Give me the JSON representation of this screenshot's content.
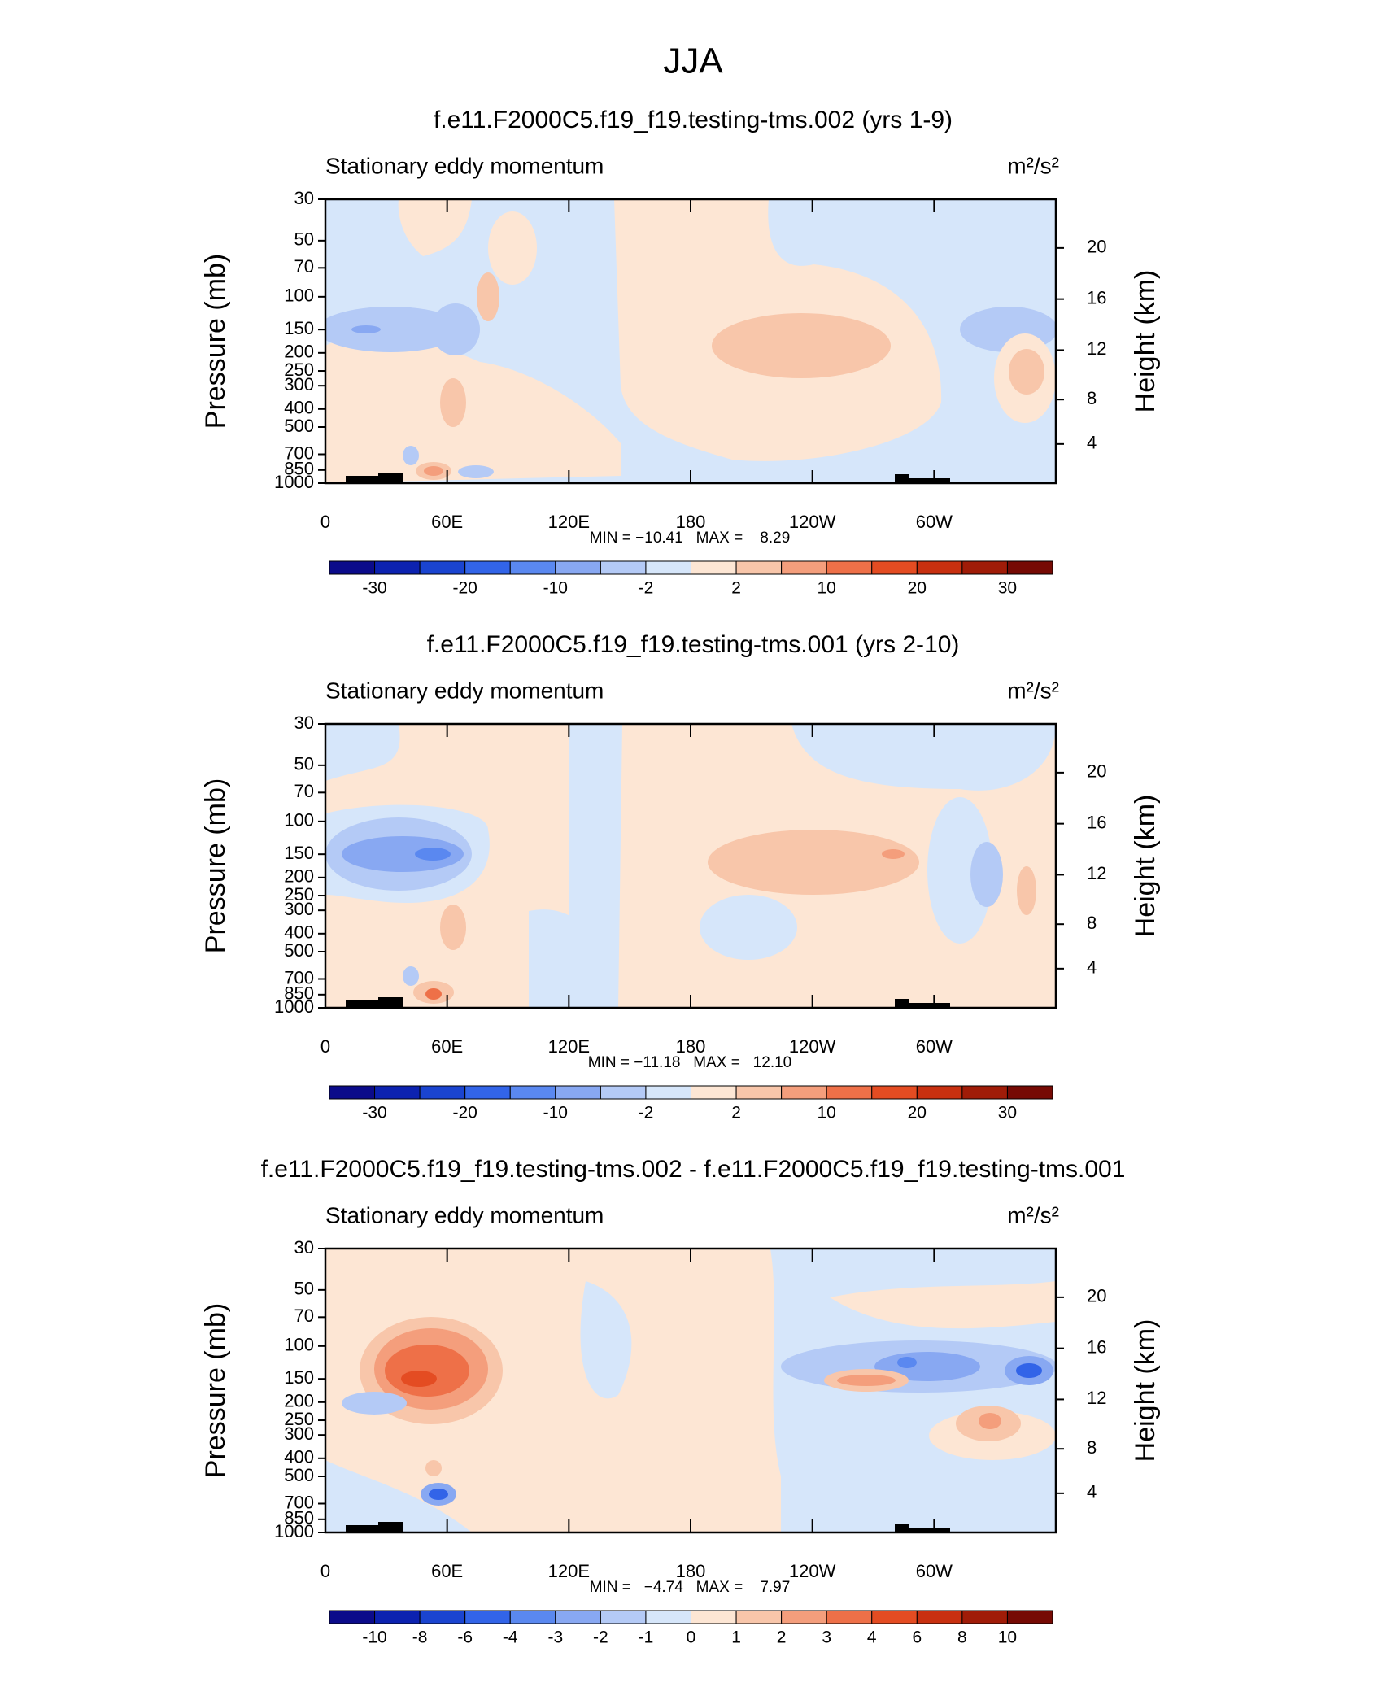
{
  "title": "JJA",
  "chart_data": [
    {
      "type": "contour",
      "title": "f.e11.F2000C5.f19_f19.testing-tms.002 (yrs 1-9)",
      "subtitle": "Stationary eddy momentum",
      "units": "m²/s²",
      "ylabel": "Pressure (mb)",
      "y2label": "Height (km)",
      "log": true,
      "xlim": [
        0,
        360
      ],
      "xticks": [
        0,
        {
          "value": 60,
          "label": "60E"
        },
        {
          "value": 120,
          "label": "120E"
        },
        180,
        {
          "value": 240,
          "label": "120W"
        },
        {
          "value": 300,
          "label": "60W"
        }
      ],
      "ylim": [
        1000,
        30
      ],
      "yticks": [
        30,
        50,
        70,
        100,
        150,
        200,
        250,
        300,
        400,
        500,
        700,
        850,
        1000
      ],
      "y2ticks": [
        4,
        8,
        12,
        16,
        20
      ],
      "stats": "MIN = −10.41   MAX =    8.29",
      "colorbar": {
        "colors": [
          "#0b0b8a",
          "#0c22b0",
          "#1a44d0",
          "#3264e8",
          "#5a88f0",
          "#88a8f2",
          "#b4caf6",
          "#d6e6fa",
          "#fde6d4",
          "#f8c6aa",
          "#f49e7c",
          "#ee7048",
          "#e44c22",
          "#c83010",
          "#a01c08",
          "#760a04"
        ],
        "levels": [
          -30,
          null,
          -20,
          null,
          -10,
          null,
          -2,
          null,
          2,
          null,
          10,
          null,
          20,
          null,
          30
        ]
      }
    },
    {
      "type": "contour",
      "title": "f.e11.F2000C5.f19_f19.testing-tms.001 (yrs 2-10)",
      "subtitle": "Stationary eddy momentum",
      "units": "m²/s²",
      "ylabel": "Pressure (mb)",
      "y2label": "Height (km)",
      "log": true,
      "xlim": [
        0,
        360
      ],
      "xticks": [
        0,
        {
          "value": 60,
          "label": "60E"
        },
        {
          "value": 120,
          "label": "120E"
        },
        180,
        {
          "value": 240,
          "label": "120W"
        },
        {
          "value": 300,
          "label": "60W"
        }
      ],
      "ylim": [
        1000,
        30
      ],
      "yticks": [
        30,
        50,
        70,
        100,
        150,
        200,
        250,
        300,
        400,
        500,
        700,
        850,
        1000
      ],
      "y2ticks": [
        4,
        8,
        12,
        16,
        20
      ],
      "stats": "MIN = −11.18   MAX =   12.10",
      "colorbar": {
        "colors": [
          "#0b0b8a",
          "#0c22b0",
          "#1a44d0",
          "#3264e8",
          "#5a88f0",
          "#88a8f2",
          "#b4caf6",
          "#d6e6fa",
          "#fde6d4",
          "#f8c6aa",
          "#f49e7c",
          "#ee7048",
          "#e44c22",
          "#c83010",
          "#a01c08",
          "#760a04"
        ],
        "levels": [
          -30,
          null,
          -20,
          null,
          -10,
          null,
          -2,
          null,
          2,
          null,
          10,
          null,
          20,
          null,
          30
        ]
      }
    },
    {
      "type": "contour",
      "title": "f.e11.F2000C5.f19_f19.testing-tms.002 - f.e11.F2000C5.f19_f19.testing-tms.001",
      "subtitle": "Stationary eddy momentum",
      "units": "m²/s²",
      "ylabel": "Pressure (mb)",
      "y2label": "Height (km)",
      "log": true,
      "xlim": [
        0,
        360
      ],
      "xticks": [
        0,
        {
          "value": 60,
          "label": "60E"
        },
        {
          "value": 120,
          "label": "120E"
        },
        180,
        {
          "value": 240,
          "label": "120W"
        },
        {
          "value": 300,
          "label": "60W"
        }
      ],
      "ylim": [
        1000,
        30
      ],
      "yticks": [
        30,
        50,
        70,
        100,
        150,
        200,
        250,
        300,
        400,
        500,
        700,
        850,
        1000
      ],
      "y2ticks": [
        4,
        8,
        12,
        16,
        20
      ],
      "stats": "MIN =   −4.74   MAX =    7.97",
      "colorbar": {
        "colors": [
          "#0b0b8a",
          "#0c22b0",
          "#1a44d0",
          "#3264e8",
          "#5a88f0",
          "#88a8f2",
          "#b4caf6",
          "#d6e6fa",
          "#fde6d4",
          "#f8c6aa",
          "#f49e7c",
          "#ee7048",
          "#e44c22",
          "#c83010",
          "#a01c08",
          "#760a04"
        ],
        "levels": [
          -10,
          -8,
          -6,
          -4,
          -3,
          -2,
          -1,
          0,
          1,
          2,
          3,
          4,
          6,
          8,
          10
        ]
      }
    }
  ]
}
